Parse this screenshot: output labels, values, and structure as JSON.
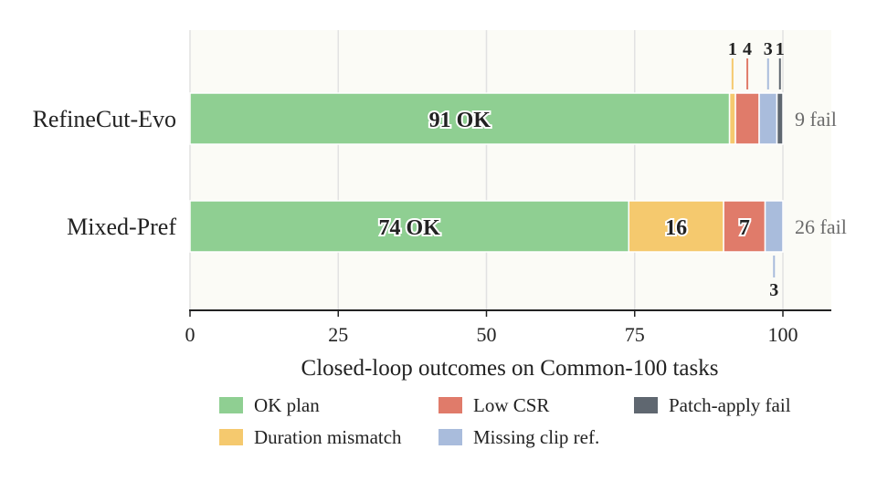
{
  "chart_data": {
    "type": "bar",
    "orientation": "horizontal",
    "stacked": true,
    "categories": [
      "RefineCut-Evo",
      "Mixed-Pref"
    ],
    "series": [
      {
        "name": "OK plan",
        "color": "#8fcf92",
        "values": [
          91,
          74
        ]
      },
      {
        "name": "Duration mismatch",
        "color": "#f5c96e",
        "values": [
          1,
          16
        ]
      },
      {
        "name": "Low CSR",
        "color": "#e07b6a",
        "values": [
          4,
          7
        ]
      },
      {
        "name": "Missing clip ref.",
        "color": "#a9bcdc",
        "values": [
          3,
          3
        ]
      },
      {
        "name": "Patch-apply fail",
        "color": "#5f6770",
        "values": [
          1,
          0
        ]
      }
    ],
    "ok_labels": [
      "91 OK",
      "74 OK"
    ],
    "fail_labels": [
      "9 fail",
      "26 fail"
    ],
    "xlabel": "Closed-loop outcomes on Common-100 tasks",
    "ylabel": "",
    "xlim": [
      0,
      108
    ],
    "xticks": [
      0,
      25,
      50,
      75,
      100
    ],
    "grid": "vertical",
    "legend_position": "bottom",
    "legend_items": [
      "OK plan",
      "Low CSR",
      "Patch-apply fail",
      "Duration mismatch",
      "Missing clip ref."
    ],
    "background": "#fbfbf6"
  }
}
